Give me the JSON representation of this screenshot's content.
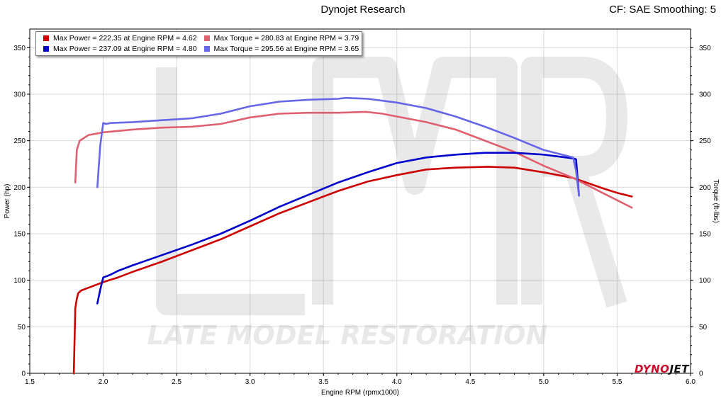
{
  "header": {
    "title": "Dynojet Research",
    "settings": "CF: SAE Smoothing: 5"
  },
  "watermark": {
    "logo_letters": "LMR",
    "text": "LATE MODEL RESTORATION"
  },
  "brand": {
    "logo_part1": "DYNO",
    "logo_part2": "JET"
  },
  "colors": {
    "run1": "#cc0000",
    "run1_torque": "#e06070",
    "run2": "#0000cc",
    "run2_torque": "#6666e6"
  },
  "legend": [
    [
      {
        "text": "Max Power = 222.35 at Engine RPM = 4.62",
        "color": "#cc0000"
      },
      {
        "text": "Max Torque = 280.83 at Engine RPM = 3.79",
        "color": "#e06070"
      }
    ],
    [
      {
        "text": "Max Power = 237.09 at Engine RPM = 4.80",
        "color": "#0000cc"
      },
      {
        "text": "Max Torque = 295.56 at Engine RPM = 3.65",
        "color": "#6666e6"
      }
    ]
  ],
  "chart_data": {
    "type": "line",
    "xlabel": "Engine RPM (rpmx1000)",
    "ylabel_left": "Power (hp)",
    "ylabel_right": "Torque (ft-lbs)",
    "xlim": [
      1.5,
      6.0
    ],
    "ylim": [
      0,
      370
    ],
    "x_ticks": [
      "1.5",
      "2.0",
      "2.5",
      "3.0",
      "3.5",
      "4.0",
      "4.5",
      "5.0",
      "5.5",
      "6.0"
    ],
    "y_ticks": [
      "0",
      "50",
      "100",
      "150",
      "200",
      "250",
      "300",
      "350"
    ],
    "series": [
      {
        "color": "#cc0000",
        "x": [
          1.8,
          1.81,
          1.82,
          1.83,
          1.85,
          1.9,
          2.0,
          2.1,
          2.2,
          2.4,
          2.6,
          2.8,
          3.0,
          3.2,
          3.4,
          3.6,
          3.8,
          4.0,
          4.2,
          4.4,
          4.62,
          4.8,
          5.0,
          5.2,
          5.4,
          5.5,
          5.6
        ],
        "y": [
          0,
          70,
          80,
          86,
          89,
          92,
          98,
          103,
          109,
          120,
          132,
          144,
          158,
          172,
          184,
          196,
          206,
          213,
          219,
          221,
          222,
          221,
          216,
          210,
          199,
          194,
          190
        ]
      },
      {
        "color": "#e06070",
        "x": [
          1.81,
          1.82,
          1.84,
          1.86,
          1.9,
          2.0,
          2.2,
          2.4,
          2.6,
          2.8,
          3.0,
          3.2,
          3.4,
          3.6,
          3.79,
          3.9,
          4.0,
          4.2,
          4.4,
          4.6,
          4.8,
          5.0,
          5.2,
          5.4,
          5.6
        ],
        "y": [
          205,
          240,
          250,
          252,
          256,
          259,
          262,
          264,
          265,
          268,
          275,
          279,
          280,
          280,
          281,
          279,
          276,
          270,
          262,
          250,
          238,
          223,
          210,
          194,
          178
        ]
      },
      {
        "color": "#0000cc",
        "x": [
          1.96,
          1.98,
          2.0,
          2.05,
          2.1,
          2.2,
          2.4,
          2.6,
          2.8,
          3.0,
          3.2,
          3.4,
          3.6,
          3.8,
          4.0,
          4.2,
          4.4,
          4.6,
          4.8,
          5.0,
          5.2,
          5.22,
          5.24
        ],
        "y": [
          75,
          90,
          103,
          106,
          110,
          116,
          127,
          138,
          150,
          164,
          179,
          192,
          205,
          216,
          226,
          232,
          235,
          237,
          237,
          235,
          231,
          230,
          191
        ]
      },
      {
        "color": "#6666e6",
        "x": [
          1.96,
          1.98,
          2.0,
          2.02,
          2.05,
          2.2,
          2.4,
          2.6,
          2.8,
          3.0,
          3.2,
          3.4,
          3.6,
          3.65,
          3.8,
          4.0,
          4.2,
          4.4,
          4.6,
          4.8,
          5.0,
          5.2,
          5.22,
          5.24
        ],
        "y": [
          200,
          245,
          269,
          268,
          269,
          270,
          272,
          274,
          279,
          287,
          292,
          294,
          295,
          296,
          295,
          291,
          285,
          276,
          265,
          253,
          240,
          232,
          218,
          191
        ]
      }
    ]
  }
}
